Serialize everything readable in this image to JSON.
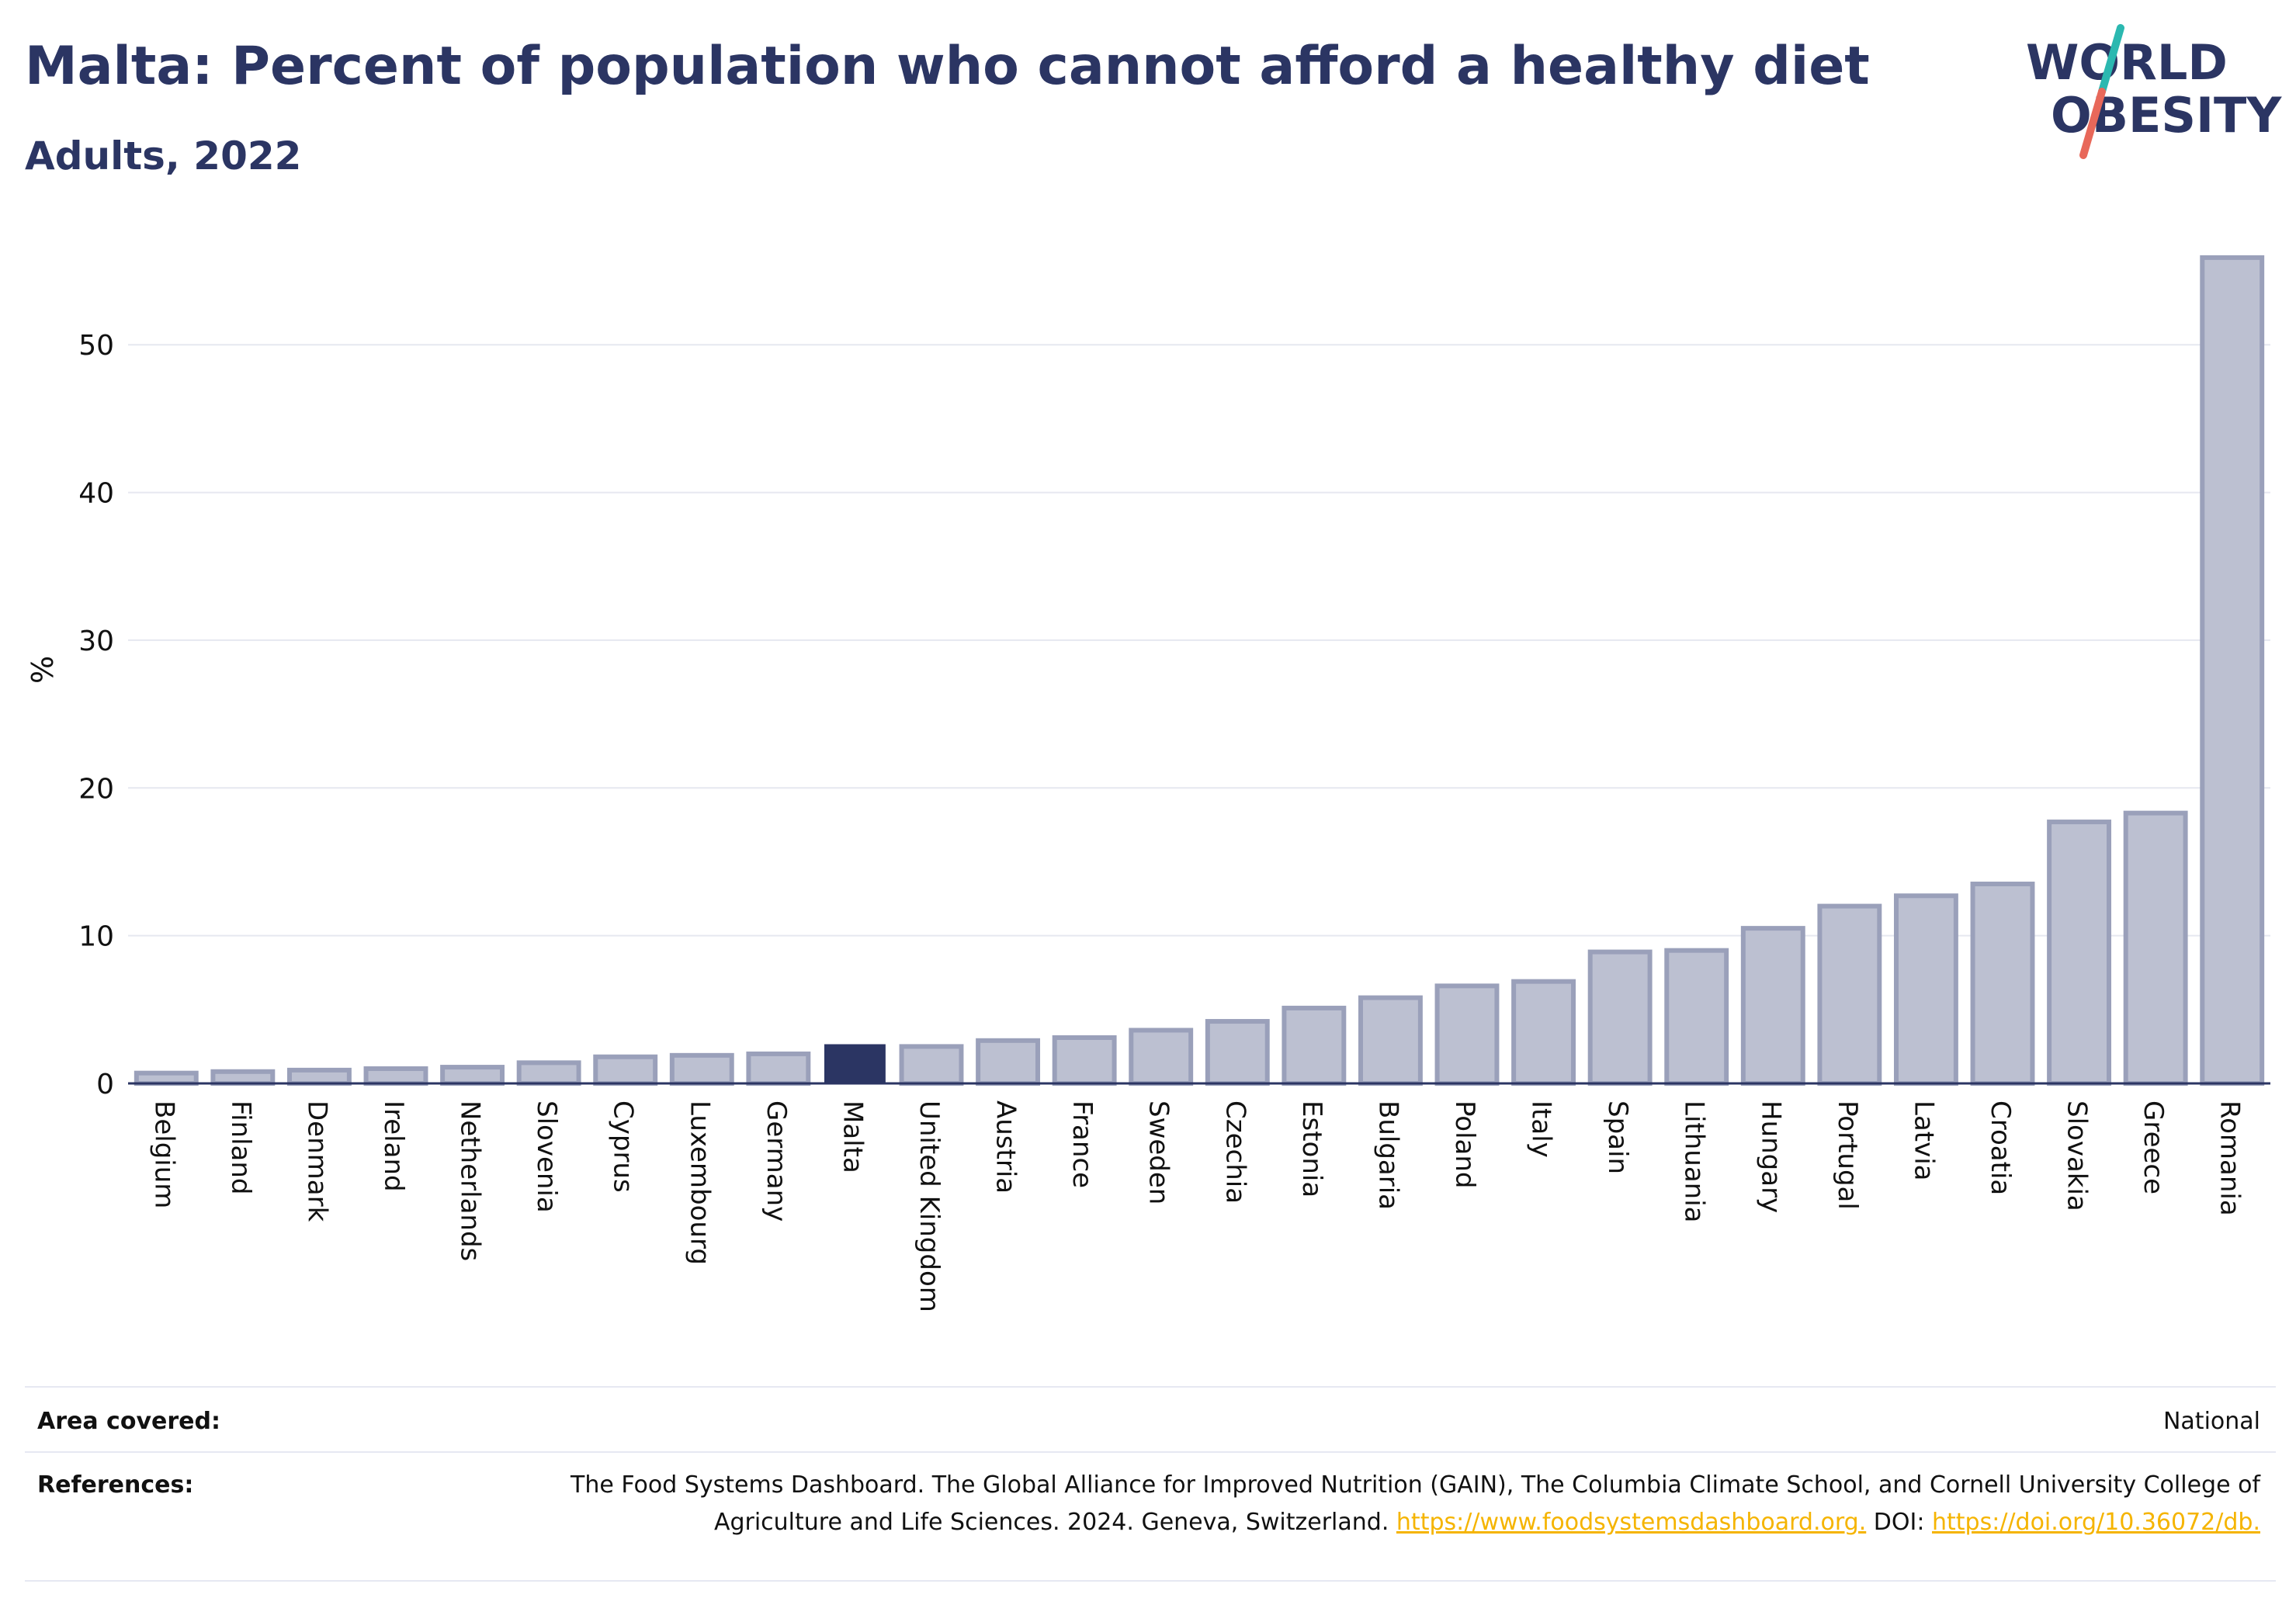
{
  "header": {
    "title": "Malta: Percent of population who cannot afford a healthy diet",
    "subtitle": "Adults, 2022"
  },
  "logo": {
    "line1": "WORLD",
    "line2": "OBESITY"
  },
  "colors": {
    "title": "#2b3563",
    "bar": "#bcc0d1",
    "bar_outline": "#9aa0ba",
    "highlight": "#2b3563",
    "link": "#f5b400",
    "logo_teal": "#2bb8b0",
    "logo_red": "#e8685a"
  },
  "chart_data": {
    "type": "bar",
    "title": "Malta: Percent of population who cannot afford a healthy diet",
    "subtitle": "Adults, 2022",
    "ylabel": "%",
    "xlabel": "",
    "ylim": [
      0,
      56
    ],
    "yticks": [
      0,
      10,
      20,
      30,
      40,
      50
    ],
    "grid": true,
    "highlight": "Malta",
    "categories": [
      "Belgium",
      "Finland",
      "Denmark",
      "Ireland",
      "Netherlands",
      "Slovenia",
      "Cyprus",
      "Luxembourg",
      "Germany",
      "Malta",
      "United Kingdom",
      "Austria",
      "France",
      "Sweden",
      "Czechia",
      "Estonia",
      "Bulgaria",
      "Poland",
      "Italy",
      "Spain",
      "Lithuania",
      "Hungary",
      "Portugal",
      "Latvia",
      "Croatia",
      "Slovakia",
      "Greece",
      "Romania"
    ],
    "values": [
      0.7,
      0.8,
      0.9,
      1.0,
      1.1,
      1.4,
      1.8,
      1.9,
      2.0,
      2.6,
      2.5,
      2.9,
      3.1,
      3.6,
      4.2,
      5.1,
      5.8,
      6.6,
      6.9,
      8.9,
      9.0,
      10.5,
      12.0,
      12.7,
      13.5,
      17.7,
      18.3,
      55.9
    ]
  },
  "footer": {
    "area_label": "Area covered:",
    "area_value": "National",
    "references_label": "References:",
    "references_text": "The Food Systems Dashboard. The Global Alliance for Improved Nutrition (GAIN), The Columbia Climate School, and Cornell University College of Agriculture and Life Sciences. 2024. Geneva, Switzerland.",
    "references_link1": "https://www.foodsystemsdashboard.org.",
    "references_doi": "DOI:",
    "references_link2": "https://doi.org/10.36072/db."
  }
}
